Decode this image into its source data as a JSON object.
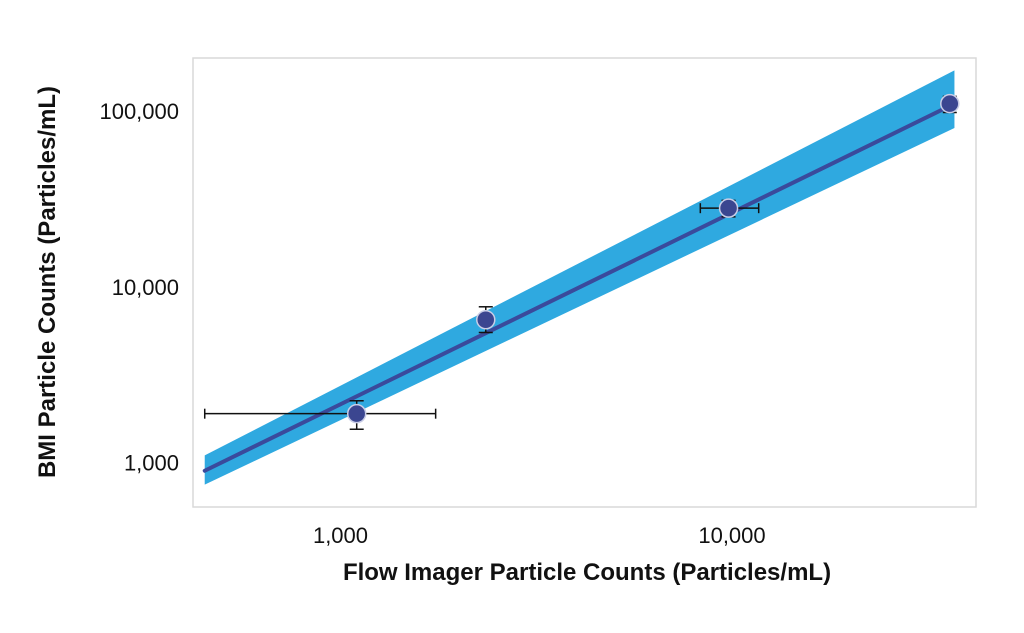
{
  "chart_data": {
    "type": "scatter",
    "title": "",
    "xlabel": "Flow Imager Particle Counts (Particles/mL)",
    "ylabel": "BMI Particle Counts (Particles/mL)",
    "x_scale": "log",
    "y_scale": "log",
    "xlim": [
      420,
      42000
    ],
    "ylim": [
      560,
      200000
    ],
    "grid": false,
    "legend": "none",
    "x_ticks": [
      {
        "value": 1000,
        "label": "1,000"
      },
      {
        "value": 10000,
        "label": "10,000"
      }
    ],
    "y_ticks": [
      {
        "value": 1000,
        "label": "1,000"
      },
      {
        "value": 10000,
        "label": "10,000"
      },
      {
        "value": 100000,
        "label": "100,000"
      }
    ],
    "points": [
      {
        "x": 1100,
        "y": 1900,
        "x_err": [
          450,
          1750
        ],
        "y_err": [
          1550,
          2250
        ]
      },
      {
        "x": 2350,
        "y": 6500,
        "x_err": null,
        "y_err": [
          5500,
          7700
        ]
      },
      {
        "x": 9800,
        "y": 28000,
        "x_err": [
          8300,
          11700
        ],
        "y_err": [
          25000,
          31000
        ]
      },
      {
        "x": 36000,
        "y": 110000,
        "x_err": null,
        "y_err": [
          98000,
          121000
        ]
      }
    ],
    "fit_line": {
      "x": [
        450,
        37000
      ],
      "y": [
        900,
        110000
      ]
    },
    "band": {
      "x": [
        450,
        37000
      ],
      "lower": [
        750,
        80000
      ],
      "upper": [
        1100,
        170000
      ]
    },
    "colors": {
      "band": "#2fa9e0",
      "line": "#3a4a9c",
      "marker": "#3b4690",
      "marker_edge": "#c9cde6",
      "error_bar": "#111111",
      "frame": "#d9d9d9"
    }
  }
}
